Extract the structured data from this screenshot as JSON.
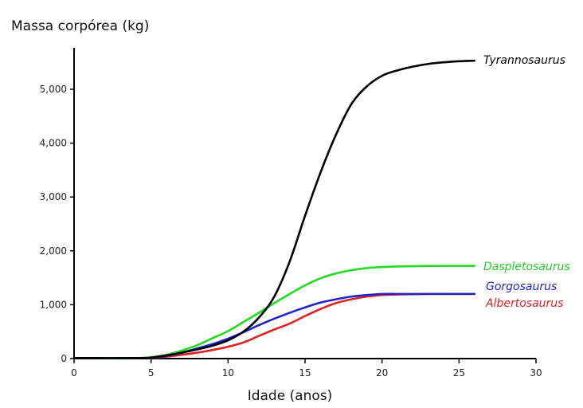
{
  "chart_data": {
    "type": "line",
    "title": "",
    "ylabel": "Massa corpórea (kg)",
    "xlabel": "Idade (anos)",
    "xlim": [
      0,
      30
    ],
    "ylim": [
      0,
      5800
    ],
    "x_ticks": [
      0,
      5,
      10,
      15,
      20,
      25,
      30
    ],
    "x_tick_labels": [
      "0",
      "5",
      "10",
      "15",
      "20",
      "25",
      "30"
    ],
    "y_ticks": [
      0,
      1000,
      2000,
      3000,
      4000,
      5000
    ],
    "y_tick_labels": [
      "0",
      "1,000",
      "2,000",
      "3,000",
      "4,000",
      "5,000"
    ],
    "grid": false,
    "legend": "inline labels at line ends",
    "series": [
      {
        "name": "Tyrannosaurus",
        "color": "#000000",
        "points": [
          [
            0,
            10
          ],
          [
            4,
            10
          ],
          [
            5,
            20
          ],
          [
            6,
            60
          ],
          [
            7,
            110
          ],
          [
            8,
            170
          ],
          [
            9,
            240
          ],
          [
            10,
            340
          ],
          [
            11,
            500
          ],
          [
            12,
            760
          ],
          [
            13,
            1150
          ],
          [
            14,
            1800
          ],
          [
            15,
            2650
          ],
          [
            16,
            3450
          ],
          [
            17,
            4150
          ],
          [
            18,
            4720
          ],
          [
            19,
            5050
          ],
          [
            20,
            5250
          ],
          [
            21,
            5350
          ],
          [
            22,
            5420
          ],
          [
            23,
            5470
          ],
          [
            24,
            5500
          ],
          [
            25,
            5520
          ],
          [
            26,
            5530
          ]
        ]
      },
      {
        "name": "Daspletosaurus",
        "color": "#22dd22",
        "points": [
          [
            0,
            10
          ],
          [
            4,
            10
          ],
          [
            5,
            25
          ],
          [
            6,
            70
          ],
          [
            7,
            150
          ],
          [
            8,
            250
          ],
          [
            9,
            380
          ],
          [
            10,
            510
          ],
          [
            11,
            680
          ],
          [
            12,
            850
          ],
          [
            13,
            1030
          ],
          [
            14,
            1200
          ],
          [
            15,
            1360
          ],
          [
            16,
            1490
          ],
          [
            17,
            1580
          ],
          [
            18,
            1640
          ],
          [
            19,
            1680
          ],
          [
            20,
            1700
          ],
          [
            21,
            1710
          ],
          [
            22,
            1715
          ],
          [
            23,
            1720
          ],
          [
            24,
            1720
          ],
          [
            25,
            1720
          ],
          [
            26,
            1720
          ]
        ]
      },
      {
        "name": "Gorgosaurus",
        "color": "#2222cc",
        "points": [
          [
            0,
            10
          ],
          [
            4,
            10
          ],
          [
            5,
            20
          ],
          [
            6,
            50
          ],
          [
            7,
            110
          ],
          [
            8,
            190
          ],
          [
            9,
            270
          ],
          [
            10,
            370
          ],
          [
            11,
            490
          ],
          [
            12,
            620
          ],
          [
            13,
            740
          ],
          [
            14,
            850
          ],
          [
            15,
            950
          ],
          [
            16,
            1040
          ],
          [
            17,
            1100
          ],
          [
            18,
            1150
          ],
          [
            19,
            1180
          ],
          [
            20,
            1200
          ],
          [
            21,
            1200
          ],
          [
            22,
            1200
          ],
          [
            23,
            1200
          ],
          [
            24,
            1200
          ],
          [
            25,
            1200
          ],
          [
            26,
            1200
          ]
        ]
      },
      {
        "name": "Albertosaurus",
        "color": "#dd2222",
        "points": [
          [
            0,
            10
          ],
          [
            4,
            10
          ],
          [
            5,
            15
          ],
          [
            6,
            35
          ],
          [
            7,
            70
          ],
          [
            8,
            110
          ],
          [
            9,
            160
          ],
          [
            10,
            220
          ],
          [
            11,
            300
          ],
          [
            12,
            420
          ],
          [
            13,
            540
          ],
          [
            14,
            650
          ],
          [
            15,
            790
          ],
          [
            16,
            920
          ],
          [
            17,
            1030
          ],
          [
            18,
            1100
          ],
          [
            19,
            1150
          ],
          [
            20,
            1180
          ],
          [
            21,
            1190
          ],
          [
            22,
            1195
          ],
          [
            23,
            1200
          ],
          [
            24,
            1200
          ],
          [
            25,
            1200
          ],
          [
            26,
            1200
          ]
        ]
      }
    ]
  }
}
